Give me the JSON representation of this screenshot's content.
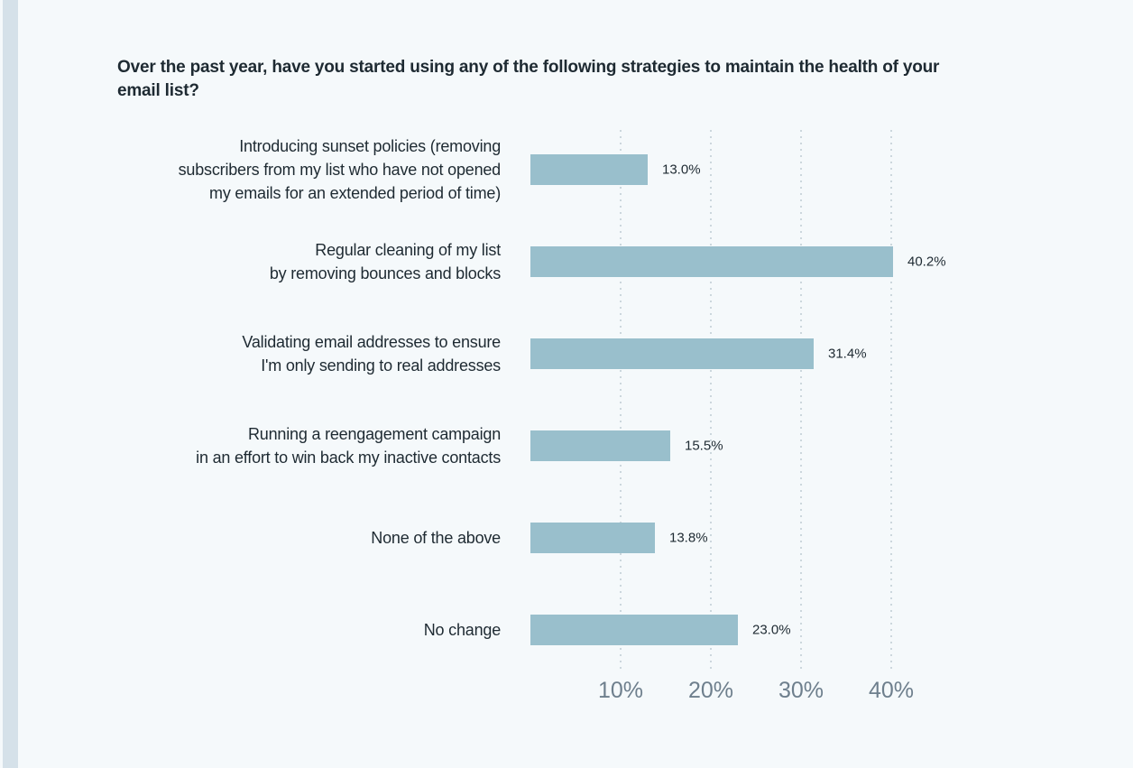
{
  "chart_data": {
    "type": "bar",
    "orientation": "horizontal",
    "title": "Over the past year, have you started using any of the following strategies to maintain the health of your\nemail list?",
    "categories": [
      "Introducing sunset policies (removing\nsubscribers from my list who have not opened\nmy emails for an extended period of time)",
      "Regular cleaning of my list\nby removing bounces and blocks",
      "Validating email addresses to ensure\nI'm only sending to real addresses",
      "Running a reengagement campaign\nin an effort to win back my inactive contacts",
      "None of the above",
      "No change"
    ],
    "values": [
      13.0,
      40.2,
      31.4,
      15.5,
      13.8,
      23.0
    ],
    "value_labels": [
      "13.0%",
      "40.2%",
      "31.4%",
      "15.5%",
      "13.8%",
      "23.0%"
    ],
    "xlabel": "",
    "ylabel": "",
    "xlim": [
      0,
      45
    ],
    "xticks": [
      {
        "value": 10,
        "label": "10%"
      },
      {
        "value": 20,
        "label": "20%"
      },
      {
        "value": 30,
        "label": "30%"
      },
      {
        "value": 40,
        "label": "40%"
      }
    ],
    "grid": "vertical-dotted",
    "legend": "none",
    "colors": {
      "bar": "#99bfcc",
      "grid": "#ccd7dd",
      "text": "#1e2a32",
      "tick_text": "#6e7f8d",
      "background": "#f5f9fb",
      "left_strip": "#d5e1e9"
    }
  }
}
